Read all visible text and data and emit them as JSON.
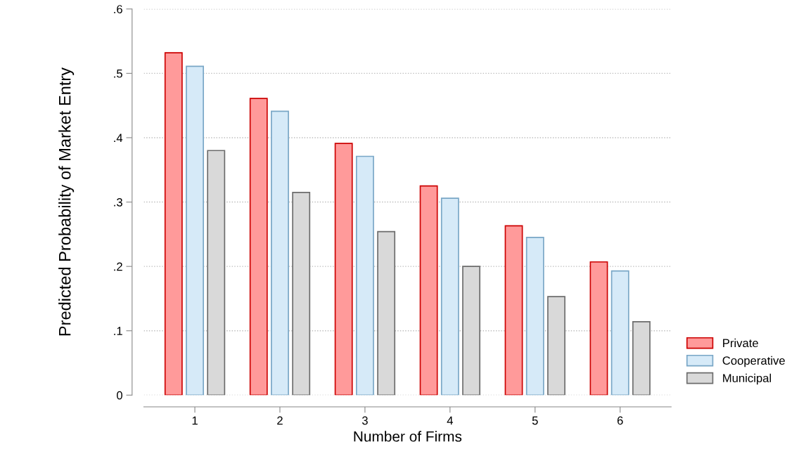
{
  "chart_data": {
    "type": "bar",
    "xlabel": "Number of Firms",
    "ylabel": "Predicted Probability of Market Entry",
    "categories": [
      "1",
      "2",
      "3",
      "4",
      "5",
      "6"
    ],
    "series": [
      {
        "name": "Private",
        "color": "#ff9a9a",
        "values": [
          0.532,
          0.461,
          0.391,
          0.325,
          0.263,
          0.207
        ]
      },
      {
        "name": "Cooperative",
        "color": "#d6eaf8",
        "values": [
          0.511,
          0.441,
          0.371,
          0.306,
          0.245,
          0.193
        ]
      },
      {
        "name": "Municipal",
        "color": "#d9d9d9",
        "values": [
          0.38,
          0.315,
          0.254,
          0.2,
          0.153,
          0.114
        ]
      }
    ],
    "ylim": [
      0,
      0.6
    ],
    "yticks": [
      0,
      {
        "value": 0.1,
        "label": ".1"
      },
      {
        "value": 0.2,
        "label": ".2"
      },
      {
        "value": 0.3,
        "label": ".3"
      },
      {
        "value": 0.4,
        "label": ".4"
      },
      {
        "value": 0.5,
        "label": ".5"
      },
      {
        "value": 0.6,
        "label": ".6"
      }
    ],
    "grid": "y",
    "legend": "bottom right"
  }
}
